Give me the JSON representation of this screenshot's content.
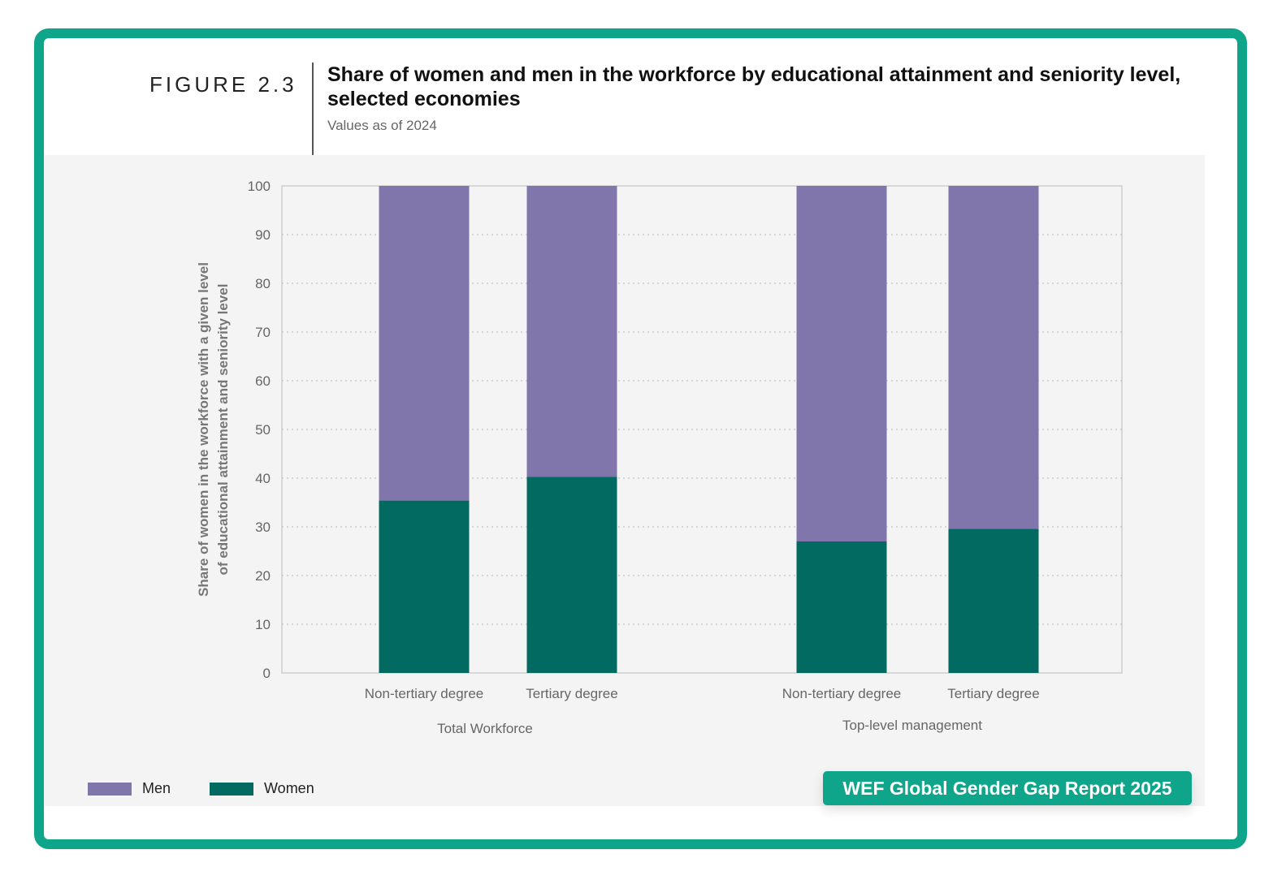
{
  "header": {
    "figure_label": "FIGURE 2.3",
    "title": "Share of women and men in the workforce by educational attainment and seniority level, selected economies",
    "subtitle": "Values as of 2024"
  },
  "legend": {
    "items": [
      {
        "label": "Men",
        "color": "#8076ac"
      },
      {
        "label": "Women",
        "color": "#036a61"
      }
    ]
  },
  "badge": {
    "text": "WEF Global Gender Gap Report 2025"
  },
  "chart_data": {
    "type": "bar",
    "stacked": true,
    "ylabel_lines": [
      "Share of women in the workforce with a given level",
      "of educational attainment and seniority level"
    ],
    "ylim": [
      0,
      100
    ],
    "yticks": [
      0,
      10,
      20,
      30,
      40,
      50,
      60,
      70,
      80,
      90,
      100
    ],
    "grid": true,
    "legend_position": "bottom-left",
    "groups": [
      {
        "label": "Total Workforce",
        "categories": [
          "Non-tertiary degree",
          "Tertiary degree"
        ]
      },
      {
        "label": "Top-level management",
        "categories": [
          "Non-tertiary degree",
          "Tertiary degree"
        ]
      }
    ],
    "categories": [
      "Non-tertiary degree",
      "Tertiary degree",
      "Non-tertiary degree",
      "Tertiary degree"
    ],
    "series": [
      {
        "name": "Women",
        "color": "#036a61",
        "values": [
          35.4,
          40.3,
          27.0,
          29.6
        ]
      },
      {
        "name": "Men",
        "color": "#8076ac",
        "values": [
          64.6,
          59.7,
          73.0,
          70.4
        ]
      }
    ]
  }
}
